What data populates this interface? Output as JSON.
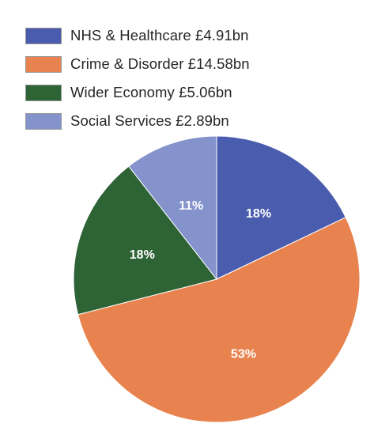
{
  "chart_data": {
    "type": "pie",
    "title": "",
    "start": "top",
    "direction": "clockwise",
    "legend_position": "top-left",
    "slices": [
      {
        "label": "NHS & Healthcare £4.91bn",
        "value": 4.91,
        "percent_label": "18%",
        "color": "#4a5cae"
      },
      {
        "label": "Crime & Disorder £14.58bn",
        "value": 14.58,
        "percent_label": "53%",
        "color": "#e8834f"
      },
      {
        "label": "Wider Economy £5.06bn",
        "value": 5.06,
        "percent_label": "18%",
        "color": "#2e6336"
      },
      {
        "label": "Social Services £2.89bn",
        "value": 2.89,
        "percent_label": "11%",
        "color": "#8593cc"
      }
    ]
  }
}
